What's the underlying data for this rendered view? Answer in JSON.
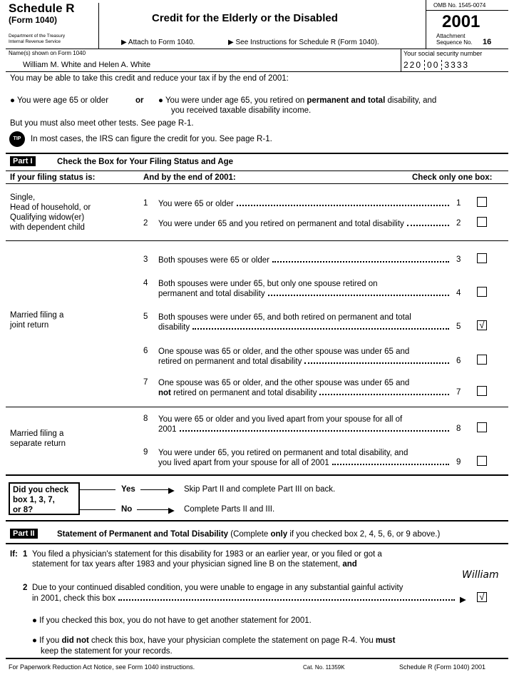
{
  "header": {
    "schedule": "Schedule R",
    "form": "(Form 1040)",
    "dept1": "Department of the Treasury",
    "dept2": "Internal Revenue Service",
    "title": "Credit for the Elderly or the Disabled",
    "attach": "▶ Attach to Form 1040.",
    "see": "▶ See Instructions for Schedule R (Form 1040).",
    "omb": "OMB No. 1545-0074",
    "year": "2001",
    "attachment": "Attachment",
    "sequence": "Sequence No.",
    "seq_no": "16"
  },
  "names": {
    "label": "Name(s) shown on Form 1040",
    "value": "William M. White and Helen A. White",
    "ssn_label": "Your social security number",
    "ssn1": "220",
    "ssn2": "00",
    "ssn3": "3333"
  },
  "intro": {
    "line1": "You may be able to take this credit and reduce your tax if by the end of 2001:",
    "bullet1": "You were age 65 or older",
    "or": "or",
    "bullet2a": "You were under age 65, you retired on ",
    "bullet2b": "permanent and total",
    "bullet2c": " disability, and",
    "bullet2d": "you received taxable disability income.",
    "line2": "But you must also meet other tests. See page R-1.",
    "tip_icon": "TIP",
    "tip": "In most cases, the IRS can figure the credit for you. See page R-1."
  },
  "part1": {
    "label": "Part I",
    "title": "Check the Box for Your Filing Status and Age",
    "col1": "If your filing status is:",
    "col2": "And by the end of 2001:",
    "col3": "Check only one box:",
    "status1": [
      "Single,",
      "Head of household, or",
      "Qualifying widow(er)",
      "with dependent child"
    ],
    "status2": [
      "Married filing a",
      "joint return"
    ],
    "status3": [
      "Married filing a",
      "separate return"
    ],
    "rows": [
      {
        "n": "1",
        "l1": "You were 65 or older",
        "l2": "",
        "checked": false
      },
      {
        "n": "2",
        "l1": "You were under 65 and you retired on permanent and total disability",
        "l2": "",
        "checked": false
      },
      {
        "n": "3",
        "l1": "Both spouses were 65 or older",
        "l2": "",
        "checked": false
      },
      {
        "n": "4",
        "l1": "Both spouses were under 65, but only one spouse retired on",
        "l2": "permanent and total disability",
        "checked": false
      },
      {
        "n": "5",
        "l1": "Both spouses were under 65, and both retired on permanent and total",
        "l2": "disability",
        "checked": true
      },
      {
        "n": "6",
        "l1": "One spouse was 65 or older, and the other spouse was under 65 and",
        "l2": "retired on permanent and total disability",
        "checked": false
      },
      {
        "n": "7",
        "l1": "One spouse was 65 or older, and the other spouse was under 65 and",
        "l2": "not retired on permanent and total disability",
        "checked": false
      },
      {
        "n": "8",
        "l1": "You were 65 or older and you lived apart from your spouse for all of",
        "l2": "2001",
        "checked": false
      },
      {
        "n": "9",
        "l1": "You were under 65, you retired on permanent and total disability, and",
        "l2": "you lived apart from your spouse for all of 2001",
        "checked": false
      }
    ]
  },
  "flow": {
    "question": [
      "Did you check",
      "box 1, 3, 7,",
      "or 8?"
    ],
    "yes": "Yes",
    "no": "No",
    "yes_text": "Skip Part II and complete Part III on back.",
    "no_text": "Complete Parts II and III."
  },
  "part2": {
    "label": "Part II",
    "title": "Statement of Permanent and Total Disability",
    "note_a": " (Complete ",
    "note_b": "only",
    "note_c": " if you checked box 2, 4, 5, 6, or 9 above.)",
    "if": "If:",
    "n1": "1",
    "l1a": "You filed a physician's statement for this disability for 1983 or an earlier year, or you filed or got a",
    "l1b": "statement for tax years after 1983 and your physician signed line B on the statement, ",
    "l1and": "and",
    "signature": "William",
    "n2": "2",
    "l2a": "Due to your continued disabled condition, you were unable to engage in any substantial gainful activity",
    "l2b": "in 2001, check this box",
    "checked": true,
    "b1": "If you checked this box, you do not have to get another statement for 2001.",
    "b2a": "If you ",
    "b2b": "did not",
    "b2c": " check this box, have your physician complete the statement on page R-4. You ",
    "b2d": "must",
    "b2e": "keep the statement for your records."
  },
  "footer": {
    "left": "For Paperwork Reduction Act Notice, see Form 1040 instructions.",
    "cat": "Cat. No. 11359K",
    "right": "Schedule R (Form 1040) 2001"
  }
}
